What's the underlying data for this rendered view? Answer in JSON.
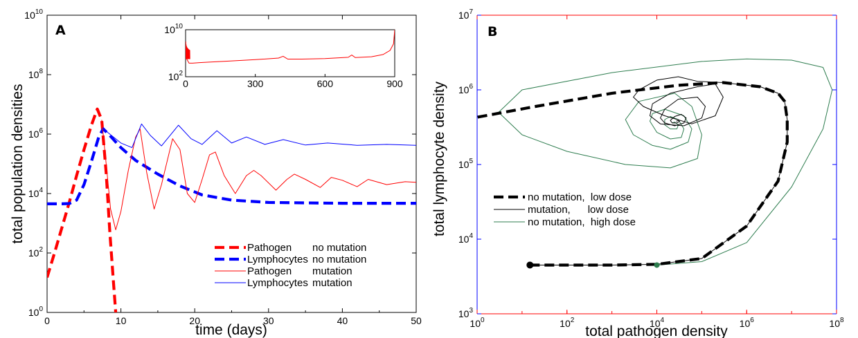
{
  "chart_data": [
    {
      "panel_label": "A",
      "type": "line",
      "xlabel": "time (days)",
      "ylabel": "total population densities",
      "xlim": [
        0,
        50
      ],
      "ylim": [
        1,
        10000000000
      ],
      "yscale": "log",
      "xticks": [
        "0",
        "10",
        "20",
        "30",
        "40",
        "50"
      ],
      "yticks": [
        {
          "base": "10",
          "exp": "0"
        },
        {
          "base": "10",
          "exp": "2"
        },
        {
          "base": "10",
          "exp": "4"
        },
        {
          "base": "10",
          "exp": "6"
        },
        {
          "base": "10",
          "exp": "8"
        },
        {
          "base": "10",
          "exp": "10"
        }
      ],
      "legend_position": "bottom-right",
      "series": [
        {
          "name": "Pathogen",
          "condition": "no mutation",
          "color": "#ff0000",
          "style": "dashed-thick",
          "x": [
            0,
            1,
            2,
            3,
            4,
            5,
            6,
            6.8,
            7.4,
            8,
            8.5,
            9,
            9.3
          ],
          "y": [
            15,
            100,
            700,
            5000,
            40000,
            300000,
            2000000,
            7000000,
            3000000,
            50000,
            500,
            10,
            1
          ]
        },
        {
          "name": "Lymphocytes",
          "condition": "no mutation",
          "color": "#0000ff",
          "style": "dashed-thick",
          "x": [
            0,
            2,
            3,
            4,
            5,
            6,
            7,
            7.6,
            8.5,
            10,
            12,
            15,
            18,
            21,
            25,
            30,
            40,
            50
          ],
          "y": [
            4500,
            4500,
            4600,
            6000,
            20000,
            120000,
            800000,
            1500000,
            900000,
            350000,
            130000,
            45000,
            18000,
            9000,
            6000,
            5000,
            4700,
            4700
          ]
        },
        {
          "name": "Pathogen",
          "condition": "mutation",
          "color": "#ff0000",
          "style": "solid-thin",
          "x": [
            7.4,
            8,
            8.6,
            9.3,
            10,
            11,
            12,
            12.6,
            13.5,
            14.5,
            15.5,
            17,
            18,
            19,
            20,
            21,
            22,
            22.8,
            24,
            25.5,
            27,
            28,
            29,
            31,
            32.5,
            33.5,
            35,
            37,
            38.5,
            40,
            42,
            43.5,
            46,
            48.5,
            50
          ],
          "y": [
            3000000,
            100000,
            3000,
            600,
            2500,
            60000,
            800000,
            1500000,
            50000,
            3000,
            20000,
            700000,
            300000,
            10000,
            5000,
            30000,
            200000,
            250000,
            40000,
            10000,
            40000,
            60000,
            40000,
            13000,
            30000,
            45000,
            30000,
            16000,
            35000,
            28000,
            17000,
            30000,
            20000,
            25000,
            24000
          ]
        },
        {
          "name": "Lymphocytes",
          "condition": "mutation",
          "color": "#0000ff",
          "style": "solid-thin",
          "x": [
            7.6,
            8.5,
            10,
            11.5,
            12.8,
            14,
            15.5,
            17.8,
            19.5,
            21,
            23,
            25,
            27,
            29.5,
            32,
            35,
            38,
            42,
            46,
            50
          ],
          "y": [
            1500000,
            1000000,
            500000,
            350000,
            2200000,
            900000,
            400000,
            2000000,
            700000,
            450000,
            1300000,
            500000,
            800000,
            450000,
            650000,
            430000,
            500000,
            420000,
            450000,
            420000
          ]
        }
      ],
      "inset": {
        "xlim": [
          0,
          900
        ],
        "ylim": [
          100,
          10000000000
        ],
        "yscale": "log",
        "xticks": [
          "0",
          "300",
          "600",
          "900"
        ],
        "yticks": [
          {
            "base": "10",
            "exp": "2"
          },
          {
            "base": "10",
            "exp": "10"
          }
        ],
        "series": {
          "color": "#ff0000",
          "x": [
            0,
            5,
            15,
            30,
            60,
            100,
            200,
            300,
            400,
            420,
            440,
            500,
            600,
            700,
            715,
            730,
            800,
            850,
            880,
            895,
            900
          ],
          "y": [
            100000000,
            100000,
            20000,
            20000,
            25000,
            30000,
            50000,
            80000,
            150000,
            300000,
            100000,
            100000,
            120000,
            200000,
            500000,
            180000,
            250000,
            600000,
            3000000,
            40000000,
            10000000000
          ]
        }
      },
      "legend": [
        {
          "name": "Pathogen",
          "condition": "no mutation"
        },
        {
          "name": "Lymphocytes",
          "condition": "no mutation"
        },
        {
          "name": "Pathogen",
          "condition": "mutation"
        },
        {
          "name": "Lymphocytes",
          "condition": "mutation"
        }
      ]
    },
    {
      "panel_label": "B",
      "type": "line",
      "xlabel": "total pathogen density",
      "ylabel": "total lymphocyte density",
      "xlim": [
        1,
        100000000
      ],
      "ylim": [
        1000,
        10000000
      ],
      "xscale": "log",
      "yscale": "log",
      "xticks": [
        {
          "base": "10",
          "exp": "0"
        },
        {
          "base": "10",
          "exp": "2"
        },
        {
          "base": "10",
          "exp": "4"
        },
        {
          "base": "10",
          "exp": "6"
        },
        {
          "base": "10",
          "exp": "8"
        }
      ],
      "yticks": [
        {
          "base": "10",
          "exp": "3"
        },
        {
          "base": "10",
          "exp": "4"
        },
        {
          "base": "10",
          "exp": "5"
        },
        {
          "base": "10",
          "exp": "6"
        },
        {
          "base": "10",
          "exp": "7"
        }
      ],
      "legend_position": "center-left",
      "frame_colors": {
        "bottom_top": "#ff0000",
        "left_right": "#0000ff"
      },
      "series": [
        {
          "name": "no mutation,  low dose",
          "color": "#000000",
          "style": "dashed-thick",
          "x": [
            15,
            1000,
            10000,
            100000,
            1000000,
            5000000,
            8000000,
            8000000,
            7000000,
            5000000,
            2000000,
            300000,
            30000,
            1000,
            20,
            1
          ],
          "y": [
            4500,
            4500,
            4600,
            5500,
            15000,
            60000,
            200000,
            400000,
            700000,
            900000,
            1100000,
            1250000,
            1150000,
            900000,
            600000,
            430000
          ]
        },
        {
          "name": "mutation,      low dose",
          "color": "#000000",
          "style": "solid-thin",
          "x": [
            15,
            1000,
            10000,
            100000,
            1000000,
            5000000,
            8000000,
            8000000,
            7000000,
            5000000,
            2000000,
            300000,
            80000,
            30000,
            10000,
            4000,
            3000,
            5000,
            15000,
            60000,
            200000,
            300000,
            200000,
            80000,
            20000,
            8000,
            7000,
            12000,
            40000,
            100000,
            120000,
            80000,
            30000,
            15000,
            12000,
            15000,
            25000,
            40000,
            45000,
            35000,
            25000,
            20000,
            22000,
            28000,
            32000,
            30000,
            27000
          ],
          "y": [
            4500,
            4500,
            4600,
            5500,
            15000,
            60000,
            200000,
            400000,
            700000,
            900000,
            1100000,
            1250000,
            1300000,
            1500000,
            1350000,
            1000000,
            800000,
            600000,
            450000,
            350000,
            450000,
            800000,
            1200000,
            1100000,
            900000,
            650000,
            450000,
            350000,
            330000,
            420000,
            600000,
            800000,
            750000,
            550000,
            420000,
            360000,
            330000,
            360000,
            420000,
            470000,
            440000,
            390000,
            360000,
            360000,
            380000,
            390000,
            380000
          ]
        },
        {
          "name": "no mutation,  high dose",
          "color": "#2e7d4f",
          "style": "solid-thin",
          "x": [
            10000,
            100000,
            1000000,
            10000000,
            50000000,
            80000000,
            50000000,
            10000000,
            1000000,
            100000,
            1000,
            10,
            3,
            10,
            100,
            2000,
            20000,
            80000,
            100000,
            60000,
            25000,
            4000,
            2000,
            3000,
            8000,
            20000,
            50000,
            60000,
            40000,
            15000,
            8000,
            7000,
            10000,
            20000,
            35000,
            40000,
            30000,
            20000,
            15000,
            15000,
            20000,
            28000,
            30000,
            25000,
            22000
          ],
          "y": [
            4500,
            5000,
            9000,
            50000,
            300000,
            1000000,
            2000000,
            2500000,
            2600000,
            2400000,
            1700000,
            1000000,
            500000,
            250000,
            150000,
            100000,
            90000,
            120000,
            250000,
            600000,
            900000,
            700000,
            400000,
            250000,
            180000,
            160000,
            200000,
            300000,
            450000,
            550000,
            480000,
            380000,
            270000,
            220000,
            230000,
            300000,
            400000,
            440000,
            400000,
            340000,
            300000,
            300000,
            340000,
            370000,
            360000
          ]
        }
      ],
      "markers": [
        {
          "x": 15,
          "y": 4500,
          "color": "#000000"
        },
        {
          "x": 10000,
          "y": 4500,
          "color": "#2e7d4f"
        }
      ],
      "legend": [
        {
          "name": "no mutation,  low dose",
          "style": "dashed-thick",
          "color": "#000000"
        },
        {
          "name": "mutation,      low dose",
          "style": "solid-thin",
          "color": "#000000"
        },
        {
          "name": "no mutation,  high dose",
          "style": "solid-thin",
          "color": "#2e7d4f"
        }
      ]
    }
  ]
}
